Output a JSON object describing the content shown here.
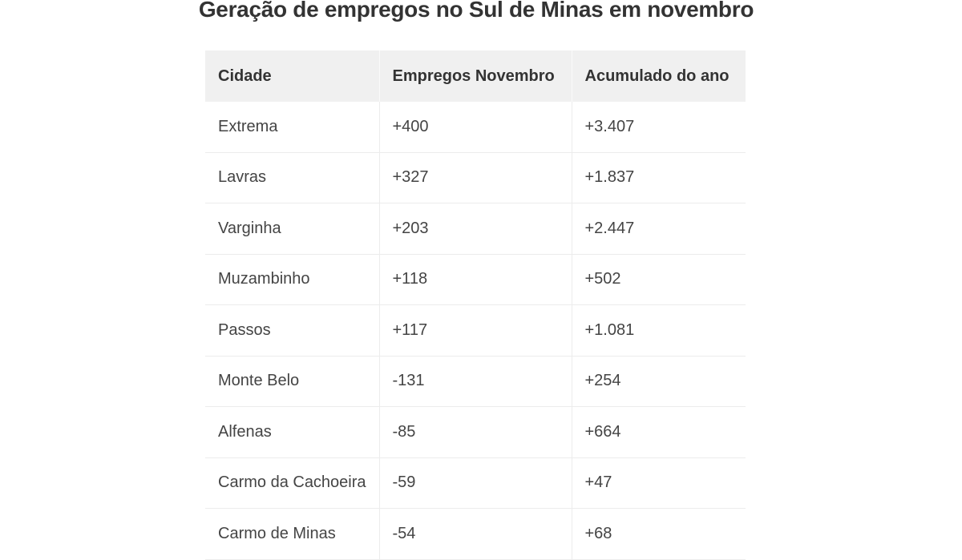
{
  "title": "Geração de empregos no Sul de Minas em novembro",
  "table": {
    "headers": [
      "Cidade",
      "Empregos Novembro",
      "Acumulado do ano"
    ],
    "rows": [
      [
        "Extrema",
        "+400",
        "+3.407"
      ],
      [
        "Lavras",
        "+327",
        "+1.837"
      ],
      [
        "Varginha",
        "+203",
        "+2.447"
      ],
      [
        "Muzambinho",
        "+118",
        "+502"
      ],
      [
        "Passos",
        "+117",
        "+1.081"
      ],
      [
        "Monte Belo",
        "-131",
        "+254"
      ],
      [
        "Alfenas",
        "-85",
        "+664"
      ],
      [
        "Carmo da Cachoeira",
        "-59",
        "+47"
      ],
      [
        "Carmo de Minas",
        "-54",
        "+68"
      ]
    ]
  },
  "colors": {
    "header_bg": "#f0f0f0",
    "text": "#333333",
    "border": "#ececec"
  }
}
